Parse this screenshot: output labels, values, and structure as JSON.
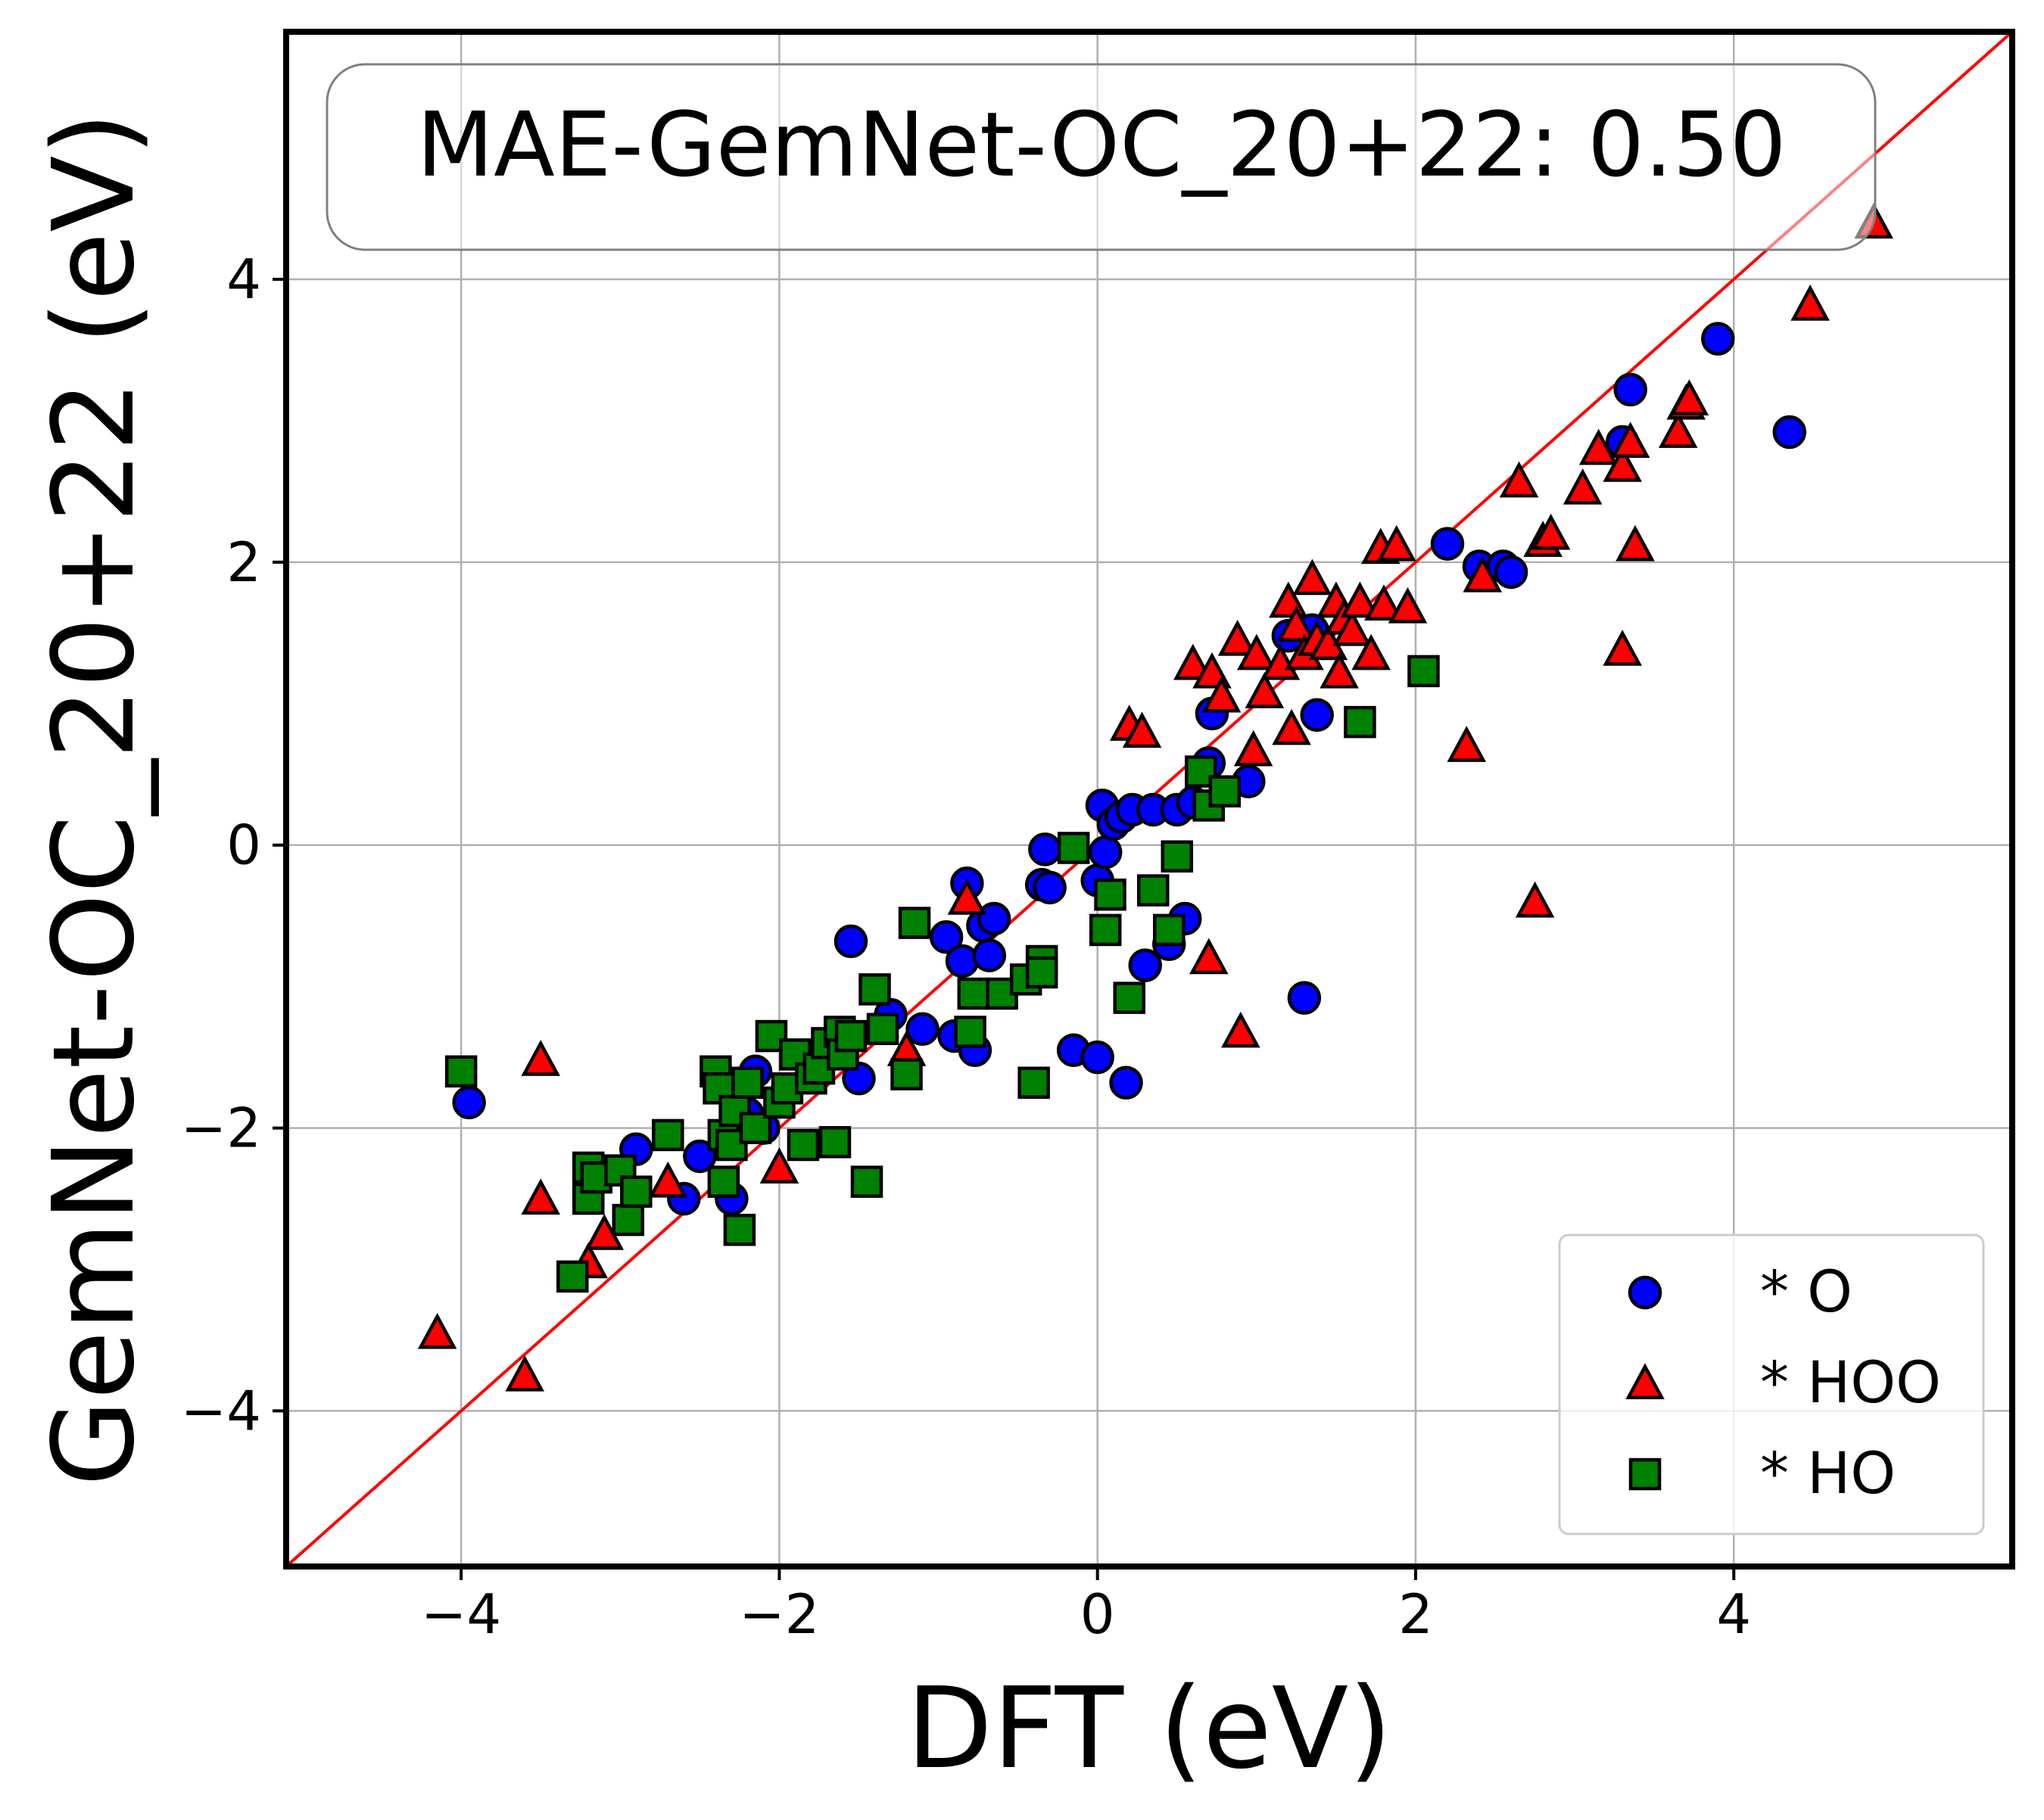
{
  "chart_data": {
    "type": "scatter",
    "title": "",
    "xlabel": "DFT (eV)",
    "ylabel": "GemNet-OC_20+22 (eV)",
    "xlim": [
      -5.1,
      5.75
    ],
    "ylim": [
      -5.1,
      5.75
    ],
    "xticks": [
      -4,
      -2,
      0,
      2,
      4
    ],
    "yticks": [
      -4,
      -2,
      0,
      2,
      4
    ],
    "xtick_labels": [
      "−4",
      "−2",
      "0",
      "2",
      "4"
    ],
    "ytick_labels": [
      "−4",
      "−2",
      "0",
      "2",
      "4"
    ],
    "grid": true,
    "legend_position": "lower-right",
    "annotation": "MAE-GemNet-OC_20+22: 0.50",
    "reference_line": {
      "from": [
        -5.1,
        -5.1
      ],
      "to": [
        5.75,
        5.75
      ],
      "color": "#ff0000"
    },
    "series": [
      {
        "name": "* O",
        "marker": "circle",
        "color": "#0000ff",
        "points": [
          [
            -3.95,
            -1.82
          ],
          [
            -2.9,
            -2.15
          ],
          [
            -2.6,
            -2.5
          ],
          [
            -2.5,
            -2.2
          ],
          [
            -2.3,
            -2.5
          ],
          [
            -2.2,
            -1.9
          ],
          [
            -2.1,
            -2.0
          ],
          [
            -2.15,
            -1.6
          ],
          [
            -1.55,
            -0.68
          ],
          [
            -1.5,
            -1.65
          ],
          [
            -1.3,
            -1.2
          ],
          [
            -1.1,
            -1.3
          ],
          [
            -0.95,
            -0.65
          ],
          [
            -0.9,
            -1.35
          ],
          [
            -0.85,
            -0.82
          ],
          [
            -0.82,
            -0.27
          ],
          [
            -0.77,
            -1.45
          ],
          [
            -0.72,
            -0.57
          ],
          [
            -0.68,
            -0.78
          ],
          [
            -0.65,
            -0.52
          ],
          [
            -0.35,
            -0.28
          ],
          [
            -0.33,
            -0.03
          ],
          [
            -0.3,
            -0.3
          ],
          [
            -0.15,
            -1.45
          ],
          [
            0.0,
            -1.5
          ],
          [
            0.0,
            -0.25
          ],
          [
            0.03,
            0.28
          ],
          [
            0.05,
            -0.05
          ],
          [
            0.1,
            0.15
          ],
          [
            0.15,
            0.2
          ],
          [
            0.18,
            -1.68
          ],
          [
            0.22,
            0.25
          ],
          [
            0.3,
            -0.85
          ],
          [
            0.35,
            0.25
          ],
          [
            0.45,
            -0.7
          ],
          [
            0.5,
            0.25
          ],
          [
            0.55,
            -0.52
          ],
          [
            0.6,
            0.3
          ],
          [
            0.7,
            0.58
          ],
          [
            0.72,
            0.93
          ],
          [
            0.95,
            0.45
          ],
          [
            1.2,
            1.48
          ],
          [
            1.3,
            -1.08
          ],
          [
            1.35,
            1.52
          ],
          [
            1.38,
            0.92
          ],
          [
            2.2,
            2.13
          ],
          [
            2.4,
            1.97
          ],
          [
            2.55,
            1.97
          ],
          [
            2.6,
            1.93
          ],
          [
            3.3,
            2.85
          ],
          [
            3.35,
            3.22
          ],
          [
            3.9,
            3.58
          ],
          [
            4.35,
            2.92
          ]
        ]
      },
      {
        "name": "* HOO",
        "marker": "triangle",
        "color": "#ff0000",
        "points": [
          [
            -4.15,
            -3.45
          ],
          [
            -3.6,
            -3.75
          ],
          [
            -3.5,
            -2.5
          ],
          [
            -3.5,
            -1.52
          ],
          [
            -3.2,
            -2.95
          ],
          [
            -3.1,
            -2.75
          ],
          [
            -2.7,
            -2.38
          ],
          [
            -2.0,
            -2.28
          ],
          [
            -1.2,
            -1.45
          ],
          [
            -0.82,
            -0.38
          ],
          [
            0.2,
            0.85
          ],
          [
            0.28,
            0.8
          ],
          [
            0.6,
            1.28
          ],
          [
            0.7,
            -0.8
          ],
          [
            0.72,
            1.22
          ],
          [
            0.78,
            1.05
          ],
          [
            0.88,
            1.45
          ],
          [
            0.9,
            -1.32
          ],
          [
            0.98,
            0.67
          ],
          [
            1.0,
            1.35
          ],
          [
            1.05,
            1.08
          ],
          [
            1.15,
            1.28
          ],
          [
            1.2,
            1.72
          ],
          [
            1.22,
            0.82
          ],
          [
            1.25,
            1.55
          ],
          [
            1.3,
            1.35
          ],
          [
            1.35,
            1.88
          ],
          [
            1.38,
            1.45
          ],
          [
            1.45,
            1.42
          ],
          [
            1.5,
            1.72
          ],
          [
            1.52,
            1.22
          ],
          [
            1.55,
            1.6
          ],
          [
            1.6,
            1.52
          ],
          [
            1.65,
            1.72
          ],
          [
            1.72,
            1.35
          ],
          [
            1.78,
            2.1
          ],
          [
            1.8,
            1.7
          ],
          [
            1.88,
            2.12
          ],
          [
            1.95,
            1.68
          ],
          [
            2.32,
            0.7
          ],
          [
            2.42,
            1.9
          ],
          [
            2.65,
            2.57
          ],
          [
            2.75,
            -0.4
          ],
          [
            2.8,
            2.15
          ],
          [
            2.85,
            2.2
          ],
          [
            3.05,
            2.52
          ],
          [
            3.15,
            2.8
          ],
          [
            3.3,
            2.68
          ],
          [
            3.3,
            1.38
          ],
          [
            3.35,
            2.85
          ],
          [
            3.38,
            2.12
          ],
          [
            3.65,
            2.92
          ],
          [
            3.7,
            3.12
          ],
          [
            3.72,
            3.15
          ],
          [
            4.48,
            3.82
          ],
          [
            4.88,
            4.4
          ]
        ]
      },
      {
        "name": "* HO",
        "marker": "square",
        "color": "#008000",
        "points": [
          [
            -4.0,
            -1.6
          ],
          [
            -3.3,
            -3.05
          ],
          [
            -3.2,
            -2.5
          ],
          [
            -3.2,
            -2.28
          ],
          [
            -3.15,
            -2.35
          ],
          [
            -3.0,
            -2.3
          ],
          [
            -2.95,
            -2.65
          ],
          [
            -2.9,
            -2.45
          ],
          [
            -2.7,
            -2.05
          ],
          [
            -2.4,
            -1.6
          ],
          [
            -2.38,
            -1.72
          ],
          [
            -2.35,
            -2.05
          ],
          [
            -2.35,
            -2.38
          ],
          [
            -2.3,
            -2.12
          ],
          [
            -2.28,
            -1.88
          ],
          [
            -2.25,
            -2.72
          ],
          [
            -2.2,
            -1.68
          ],
          [
            -2.15,
            -2.0
          ],
          [
            -2.05,
            -1.35
          ],
          [
            -2.0,
            -1.82
          ],
          [
            -1.95,
            -1.72
          ],
          [
            -1.9,
            -1.48
          ],
          [
            -1.85,
            -2.12
          ],
          [
            -1.8,
            -1.65
          ],
          [
            -1.75,
            -1.58
          ],
          [
            -1.7,
            -1.4
          ],
          [
            -1.65,
            -2.1
          ],
          [
            -1.62,
            -1.32
          ],
          [
            -1.6,
            -1.48
          ],
          [
            -1.55,
            -1.35
          ],
          [
            -1.45,
            -2.38
          ],
          [
            -1.4,
            -1.02
          ],
          [
            -1.35,
            -1.3
          ],
          [
            -1.2,
            -1.62
          ],
          [
            -1.15,
            -0.55
          ],
          [
            -0.8,
            -1.32
          ],
          [
            -0.78,
            -1.05
          ],
          [
            -0.6,
            -1.05
          ],
          [
            -0.45,
            -0.95
          ],
          [
            -0.4,
            -1.68
          ],
          [
            -0.35,
            -0.82
          ],
          [
            -0.35,
            -0.9
          ],
          [
            -0.15,
            -0.02
          ],
          [
            0.05,
            -0.6
          ],
          [
            0.08,
            -0.35
          ],
          [
            0.2,
            -1.08
          ],
          [
            0.35,
            -0.32
          ],
          [
            0.45,
            -0.6
          ],
          [
            0.5,
            -0.08
          ],
          [
            0.65,
            0.52
          ],
          [
            0.7,
            0.28
          ],
          [
            0.8,
            0.38
          ],
          [
            1.65,
            0.87
          ],
          [
            2.05,
            1.23
          ]
        ]
      }
    ]
  }
}
